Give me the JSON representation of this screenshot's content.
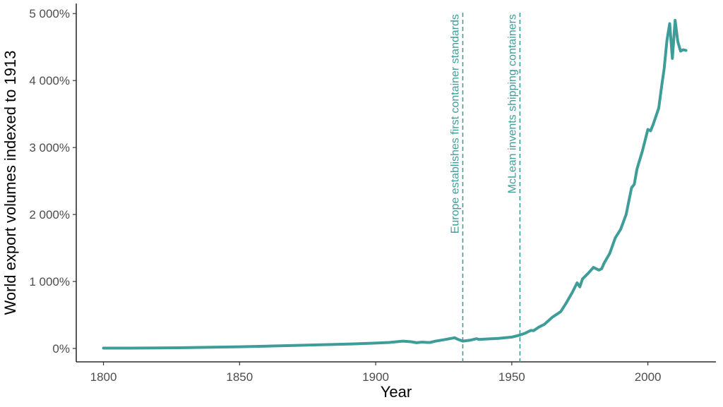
{
  "chart_data": {
    "type": "line",
    "xlabel": "Year",
    "ylabel": "World export volumes indexed to 1913",
    "xlim": [
      1790,
      2025
    ],
    "ylim": [
      -200,
      5150
    ],
    "x_ticks": [
      1800,
      1850,
      1900,
      1950,
      2000
    ],
    "x_tick_labels": [
      "1800",
      "1850",
      "1900",
      "1950",
      "2000"
    ],
    "y_ticks": [
      0,
      1000,
      2000,
      3000,
      4000,
      5000
    ],
    "y_tick_labels": [
      "0%",
      "1 000%",
      "2 000%",
      "3 000%",
      "4 000%",
      "5 000%"
    ],
    "grid": false,
    "line_color": "#3f9d99",
    "series": [
      {
        "x": [
          1800,
          1810,
          1820,
          1830,
          1840,
          1850,
          1860,
          1870,
          1880,
          1890,
          1900,
          1905,
          1910,
          1913,
          1915,
          1917,
          1919,
          1920,
          1922,
          1925,
          1929,
          1930,
          1932,
          1935,
          1937,
          1938,
          1940,
          1945,
          1950,
          1953,
          1955,
          1957,
          1958,
          1960,
          1962,
          1965,
          1968,
          1970,
          1972,
          1974,
          1975,
          1976,
          1978,
          1980,
          1982,
          1983,
          1984,
          1986,
          1988,
          1990,
          1992,
          1994,
          1995,
          1996,
          1998,
          2000,
          2001,
          2002,
          2004,
          2005,
          2006,
          2007,
          2008,
          2009,
          2010,
          2011,
          2012,
          2013,
          2014
        ],
        "y": [
          5,
          5,
          8,
          12,
          18,
          25,
          35,
          45,
          55,
          65,
          80,
          90,
          110,
          100,
          85,
          95,
          90,
          90,
          110,
          130,
          160,
          140,
          110,
          125,
          145,
          135,
          140,
          150,
          170,
          200,
          230,
          270,
          265,
          320,
          360,
          470,
          550,
          680,
          820,
          980,
          920,
          1040,
          1120,
          1210,
          1170,
          1190,
          1280,
          1420,
          1650,
          1780,
          2000,
          2400,
          2450,
          2680,
          2950,
          3270,
          3250,
          3350,
          3590,
          3900,
          4180,
          4600,
          4850,
          4330,
          4900,
          4580,
          4440,
          4460,
          4450
        ]
      }
    ],
    "annotations": [
      {
        "x": 1932,
        "label": "Europe establishes first container standards"
      },
      {
        "x": 1953,
        "label": "McLean invents shipping containers"
      }
    ]
  }
}
